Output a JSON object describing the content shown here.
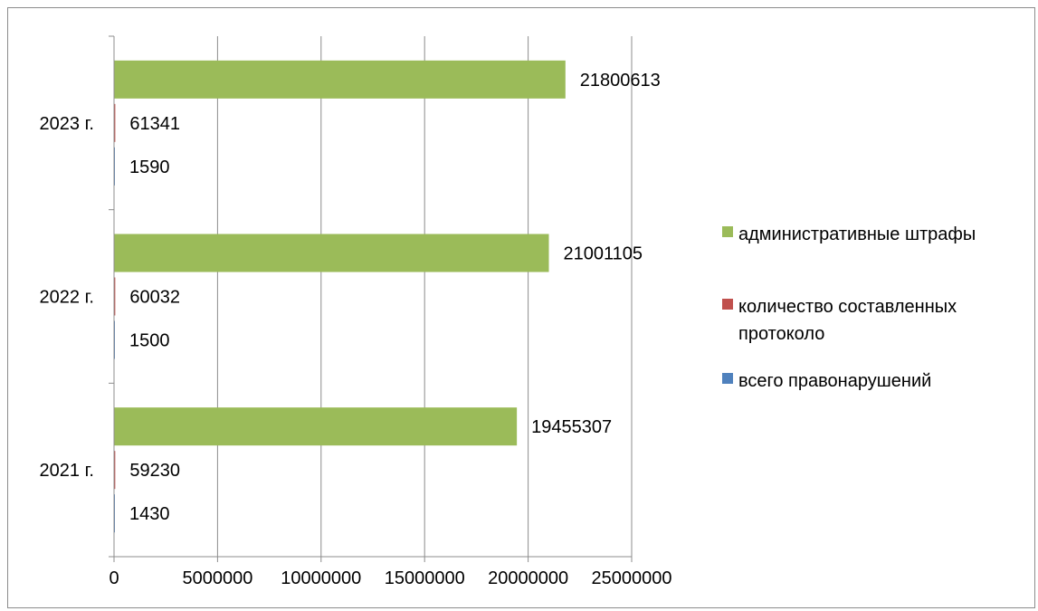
{
  "chart_data": {
    "type": "bar",
    "orientation": "horizontal",
    "categories": [
      "2021 г.",
      "2022 г.",
      "2023 г."
    ],
    "series": [
      {
        "name": "всего правонарушений",
        "color": "#4f81bd",
        "values": [
          1430,
          1500,
          1590
        ]
      },
      {
        "name": "количество составленных протоколо",
        "color": "#c0504d",
        "values": [
          59230,
          60032,
          61341
        ]
      },
      {
        "name": "административные штрафы",
        "color": "#9bbb59",
        "values": [
          19455307,
          21001105,
          21800613
        ]
      }
    ],
    "data_labels": [
      [
        "1430",
        "1500",
        "1590"
      ],
      [
        "59230",
        "60032",
        "61341"
      ],
      [
        "19455307",
        "21001105",
        "21800613"
      ]
    ],
    "x_ticks": [
      "0",
      "5000000",
      "10000000",
      "15000000",
      "20000000",
      "25000000"
    ],
    "xlim": [
      0,
      25000000
    ],
    "grid": "vertical major gridlines",
    "legend_position": "right",
    "legend_entries": [
      {
        "label": "административные штрафы",
        "color": "#9bbb59"
      },
      {
        "label": "количество составленных протоколо",
        "color": "#c0504d"
      },
      {
        "label": "всего правонарушений",
        "color": "#4f81bd"
      }
    ],
    "title": "",
    "xlabel": "",
    "ylabel": ""
  }
}
